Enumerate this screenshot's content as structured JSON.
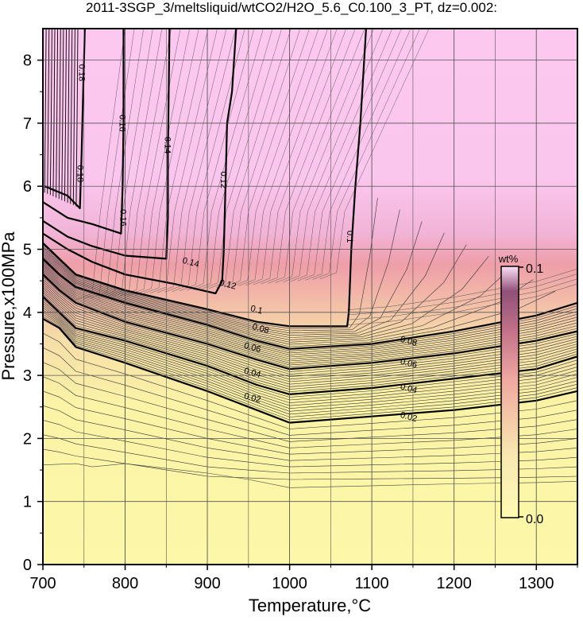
{
  "chart_data": {
    "type": "heatmap",
    "title": "2011-3SGP_3/meltsliquid/wtCO2/H2O_5.6_C0.100_3_PT, dz=0.002:",
    "xlabel": "Temperature,°C",
    "ylabel": "Pressure,x100MPa",
    "xlim": [
      700,
      1350
    ],
    "ylim": [
      0,
      8.5
    ],
    "x_ticks": [
      700,
      800,
      900,
      1000,
      1100,
      1200,
      1300
    ],
    "x_tick_labels": [
      "700",
      "800",
      "900",
      "1000",
      "1100",
      "1200",
      "1300"
    ],
    "y_ticks": [
      0,
      1,
      2,
      3,
      4,
      5,
      6,
      7,
      8
    ],
    "y_tick_labels": [
      "0",
      "1",
      "2",
      "3",
      "4",
      "5",
      "6",
      "7",
      "8"
    ],
    "grid": true,
    "contour_interval": 0.002,
    "major_contours": [
      {
        "level": 0.02,
        "label": "0.02",
        "points": [
          [
            700,
            3.9
          ],
          [
            720,
            3.75
          ],
          [
            740,
            3.45
          ],
          [
            800,
            3.2
          ],
          [
            900,
            2.75
          ],
          [
            960,
            2.45
          ],
          [
            1000,
            2.25
          ],
          [
            1100,
            2.35
          ],
          [
            1200,
            2.45
          ],
          [
            1300,
            2.6
          ],
          [
            1350,
            2.75
          ]
        ]
      },
      {
        "level": 0.04,
        "label": "0.04",
        "points": [
          [
            700,
            4.25
          ],
          [
            720,
            4.0
          ],
          [
            740,
            3.75
          ],
          [
            800,
            3.55
          ],
          [
            900,
            3.15
          ],
          [
            960,
            2.85
          ],
          [
            1000,
            2.7
          ],
          [
            1100,
            2.8
          ],
          [
            1200,
            2.95
          ],
          [
            1300,
            3.1
          ],
          [
            1350,
            3.3
          ]
        ]
      },
      {
        "level": 0.06,
        "label": "0.06",
        "points": [
          [
            700,
            4.6
          ],
          [
            720,
            4.35
          ],
          [
            740,
            4.15
          ],
          [
            800,
            3.85
          ],
          [
            900,
            3.5
          ],
          [
            960,
            3.25
          ],
          [
            1000,
            3.1
          ],
          [
            1100,
            3.2
          ],
          [
            1200,
            3.35
          ],
          [
            1300,
            3.55
          ],
          [
            1350,
            3.7
          ]
        ]
      },
      {
        "level": 0.08,
        "label": "0.08",
        "points": [
          [
            700,
            4.85
          ],
          [
            720,
            4.6
          ],
          [
            740,
            4.4
          ],
          [
            800,
            4.15
          ],
          [
            900,
            3.8
          ],
          [
            960,
            3.55
          ],
          [
            1000,
            3.42
          ],
          [
            1100,
            3.5
          ],
          [
            1200,
            3.7
          ],
          [
            1300,
            3.95
          ],
          [
            1350,
            4.15
          ]
        ]
      },
      {
        "level": 0.1,
        "label": "0.1",
        "points": [
          [
            700,
            5.1
          ],
          [
            720,
            4.85
          ],
          [
            740,
            4.6
          ],
          [
            800,
            4.35
          ],
          [
            900,
            4.05
          ],
          [
            960,
            3.85
          ],
          [
            1000,
            3.78
          ],
          [
            1070,
            3.78
          ],
          [
            1072,
            4.0
          ],
          [
            1075,
            5.0
          ],
          [
            1080,
            6.0
          ],
          [
            1086,
            7.0
          ],
          [
            1093,
            8.5
          ]
        ]
      },
      {
        "level": 0.12,
        "label": "0.12",
        "points": [
          [
            700,
            5.25
          ],
          [
            730,
            5.0
          ],
          [
            760,
            4.8
          ],
          [
            800,
            4.6
          ],
          [
            860,
            4.45
          ],
          [
            910,
            4.3
          ],
          [
            918,
            4.5
          ],
          [
            920,
            5.0
          ],
          [
            922,
            6.0
          ],
          [
            924,
            7.0
          ],
          [
            930,
            7.5
          ],
          [
            935,
            8.5
          ]
        ]
      },
      {
        "level": 0.14,
        "label": "0.14",
        "points": [
          [
            700,
            5.45
          ],
          [
            730,
            5.2
          ],
          [
            760,
            5.05
          ],
          [
            800,
            4.9
          ],
          [
            850,
            4.85
          ],
          [
            852,
            5.5
          ],
          [
            852,
            6.5
          ],
          [
            853,
            7.5
          ],
          [
            854,
            8.5
          ]
        ]
      },
      {
        "level": 0.16,
        "label": "0.16",
        "points": [
          [
            700,
            5.75
          ],
          [
            730,
            5.5
          ],
          [
            760,
            5.4
          ],
          [
            795,
            5.25
          ],
          [
            797,
            6.0
          ],
          [
            798,
            7.0
          ],
          [
            798,
            8.0
          ],
          [
            798,
            8.5
          ]
        ]
      },
      {
        "level": 0.18,
        "label": "0.18",
        "points": [
          [
            702,
            6.0
          ],
          [
            730,
            5.85
          ],
          [
            745,
            5.65
          ],
          [
            747,
            6.5
          ],
          [
            749,
            7.5
          ],
          [
            751,
            8.5
          ]
        ]
      }
    ],
    "contour_labels": [
      {
        "text": "0.02",
        "x": 955,
        "y": 2.65
      },
      {
        "text": "0.04",
        "x": 955,
        "y": 3.05
      },
      {
        "text": "0.06",
        "x": 955,
        "y": 3.45
      },
      {
        "text": "0.08",
        "x": 965,
        "y": 3.75
      },
      {
        "text": "0.1",
        "x": 960,
        "y": 4.05
      },
      {
        "text": "0.12",
        "x": 925,
        "y": 4.45
      },
      {
        "text": "0.14",
        "x": 880,
        "y": 4.8
      },
      {
        "text": "0.02",
        "x": 1145,
        "y": 2.35
      },
      {
        "text": "0.04",
        "x": 1145,
        "y": 2.8
      },
      {
        "text": "0.06",
        "x": 1145,
        "y": 3.2
      },
      {
        "text": "0.08",
        "x": 1145,
        "y": 3.55
      },
      {
        "text": "0.1",
        "x": 1074,
        "y": 5.2
      },
      {
        "text": "0.12",
        "x": 920,
        "y": 6.1
      },
      {
        "text": "0.14",
        "x": 852,
        "y": 6.65
      },
      {
        "text": "0.16",
        "x": 797,
        "y": 7.0
      },
      {
        "text": "0.16",
        "x": 798,
        "y": 5.5
      },
      {
        "text": "0.18",
        "x": 748,
        "y": 7.8
      },
      {
        "text": "0.18",
        "x": 746,
        "y": 6.2
      }
    ],
    "colorbar": {
      "title": "wt%",
      "min_label": "0.0",
      "max_label": "0.1",
      "range": [
        0.0,
        0.1
      ],
      "colors": [
        "#fffcb0",
        "#f8d8b0",
        "#f0a0a0",
        "#b06080",
        "#602050"
      ]
    },
    "colors": {
      "low": "#fcf8a8",
      "mid": "#f0b0a8",
      "high": "#fcc8f0"
    }
  }
}
